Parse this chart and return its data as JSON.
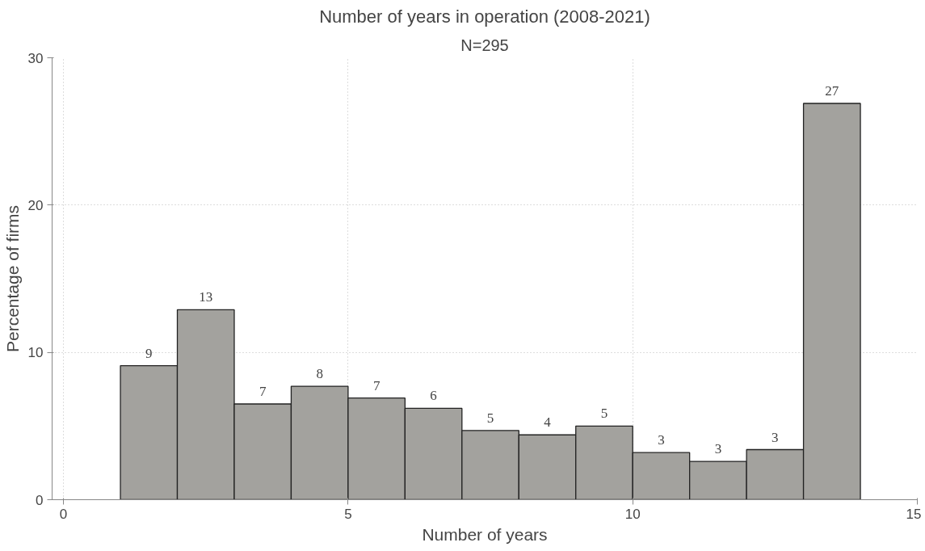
{
  "chart_data": {
    "type": "histogram",
    "title": "Number of years in operation (2008-2021)",
    "subtitle": "N=295",
    "xlabel": "Number of years",
    "ylabel": "Percentage of firms",
    "bins": [
      1,
      2,
      3,
      4,
      5,
      6,
      7,
      8,
      9,
      10,
      11,
      12,
      13,
      14
    ],
    "values": [
      9.1,
      12.9,
      6.5,
      7.7,
      6.9,
      6.2,
      4.7,
      4.4,
      5.0,
      3.2,
      2.6,
      3.4,
      26.9
    ],
    "value_labels": [
      "9",
      "13",
      "7",
      "8",
      "7",
      "6",
      "5",
      "4",
      "5",
      "3",
      "3",
      "3",
      "27"
    ],
    "color": "#a3a29e",
    "xlim": [
      -0.2,
      15
    ],
    "ylim": [
      0,
      30
    ],
    "xticks": [
      0,
      5,
      10,
      15
    ],
    "yticks": [
      0,
      10,
      20,
      30
    ],
    "grid": true
  }
}
